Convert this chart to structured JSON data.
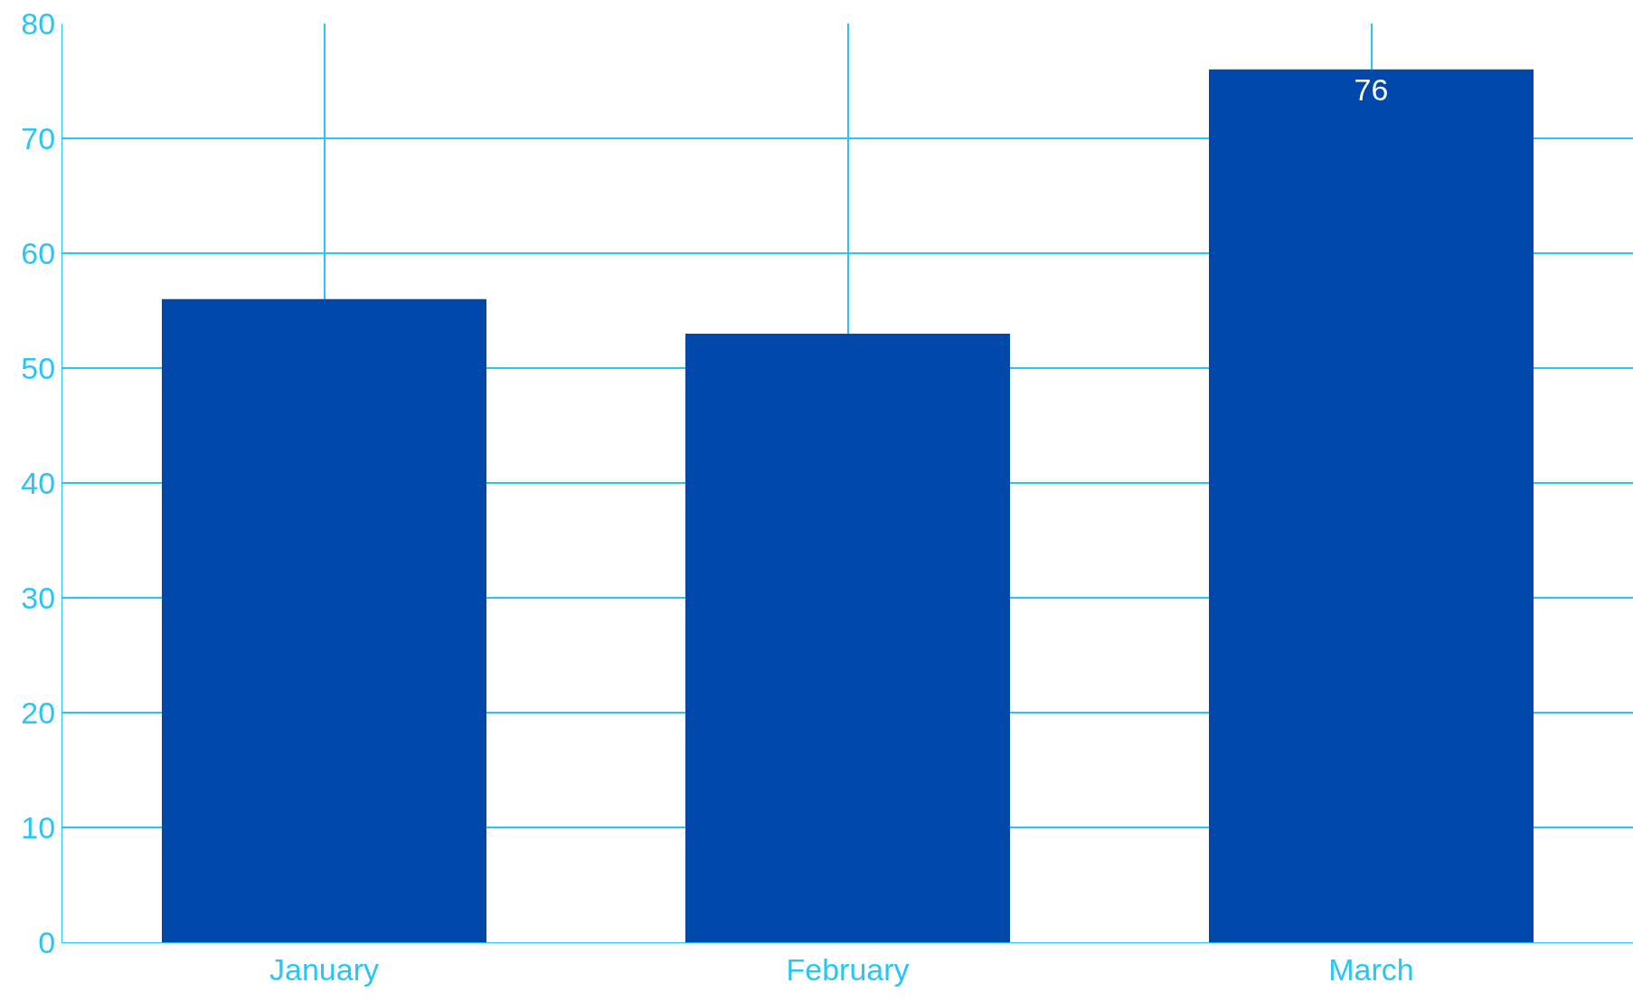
{
  "chart_data": {
    "type": "bar",
    "categories": [
      "January",
      "February",
      "March"
    ],
    "values": [
      56,
      53,
      76
    ],
    "color": "#0049aa",
    "value_labels": [
      null,
      null,
      "76"
    ],
    "ylim": [
      0,
      80
    ],
    "yticks": [
      0,
      10,
      20,
      30,
      40,
      50,
      60,
      70,
      80
    ],
    "grid": true
  }
}
